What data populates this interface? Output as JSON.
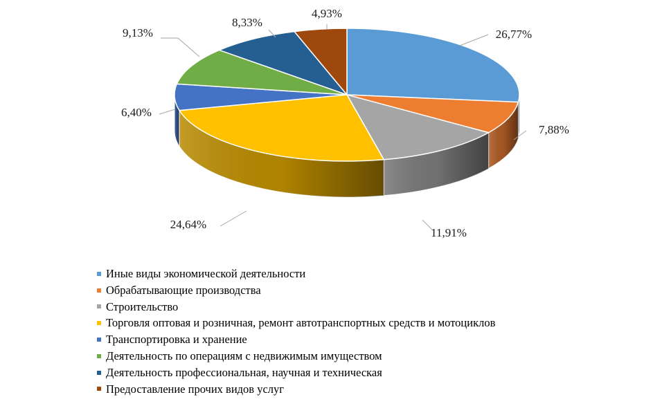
{
  "chart_data": {
    "type": "pie",
    "title": "",
    "labels": [
      "Иные виды экономической деятельности",
      "Обрабатывающие производства",
      "Строительство",
      "Торговля оптовая и розничная, ремонт автотранспортных средств и мотоциклов",
      "Транспортировка и хранение",
      "Деятельность по операциям с недвижимым имуществом",
      "Деятельность профессиональная, научная и техническая",
      "Предоставление прочих видов услуг"
    ],
    "values": [
      26.77,
      7.88,
      11.91,
      24.64,
      6.4,
      9.13,
      8.33,
      4.93
    ],
    "value_labels": [
      "26,77%",
      "7,88%",
      "11,91%",
      "24,64%",
      "6,40%",
      "9,13%",
      "8,33%",
      "4,93%"
    ],
    "colors": [
      "#5B9BD5",
      "#ED7D31",
      "#A5A5A5",
      "#FFC000",
      "#4472C4",
      "#70AD47",
      "#255E91",
      "#9E480E"
    ],
    "legend_position": "bottom",
    "style": "3d-pie"
  }
}
